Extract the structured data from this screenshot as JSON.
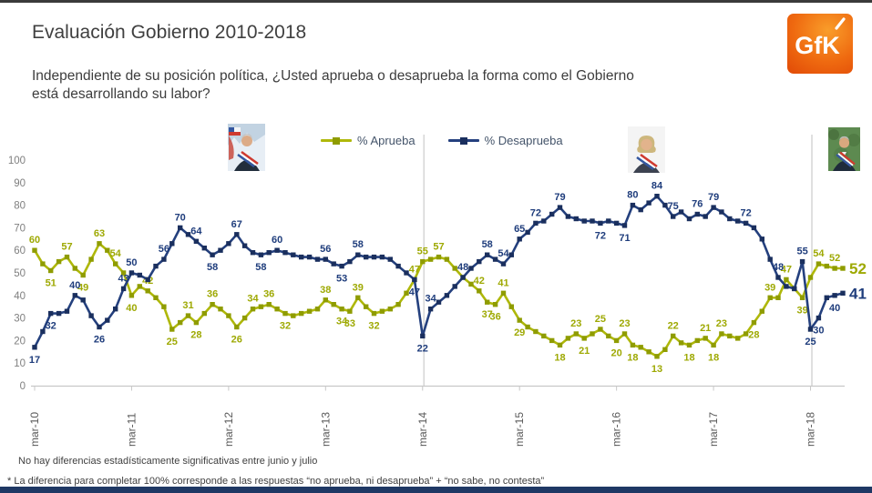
{
  "page": {
    "title": "Evaluación Gobierno 2010-2018",
    "subtitle_line1": "Independiente de su posición política, ¿Usted aprueba o desaprueba la forma como el Gobierno",
    "subtitle_line2": "está desarrollando su labor?"
  },
  "logo": {
    "text": "GfK"
  },
  "footnotes": [
    "No hay diferencias estadísticamente significativas entre junio y julio",
    "* La diferencia para completar 100% corresponde a las respuestas “no aprueba, ni desaprueba” + “no sabe, no contesta”"
  ],
  "chart_data": {
    "type": "line",
    "title": "Evaluación Gobierno 2010-2018",
    "x_unit": "month",
    "x_start": "mar-10",
    "x_end": "jul-18",
    "ylim": [
      0,
      100
    ],
    "grid": "off",
    "legend_position": "top-center",
    "y_ticks": [
      0,
      10,
      20,
      30,
      40,
      50,
      60,
      70,
      80,
      90,
      100
    ],
    "x_ticks": [
      {
        "label": "mar-10",
        "month": 0
      },
      {
        "label": "mar-11",
        "month": 12
      },
      {
        "label": "mar-12",
        "month": 24
      },
      {
        "label": "mar-13",
        "month": 36
      },
      {
        "label": "mar-14",
        "month": 48
      },
      {
        "label": "mar-15",
        "month": 60
      },
      {
        "label": "mar-16",
        "month": 72
      },
      {
        "label": "mar-17",
        "month": 84
      },
      {
        "label": "mar-18",
        "month": 96
      }
    ],
    "separator_months": [
      48,
      96
    ],
    "series": [
      {
        "key": "aprueba",
        "name": "% Aprueba",
        "color": "#afb80a",
        "marker_color": "#8f9c00",
        "label_color": "#9ea903",
        "end_label": "52",
        "values": [
          60,
          54,
          51,
          55,
          57,
          52,
          49,
          56,
          63,
          60,
          54,
          50,
          40,
          44,
          42,
          39,
          35,
          25,
          28,
          31,
          28,
          32,
          36,
          34,
          31,
          26,
          30,
          34,
          35,
          36,
          34,
          32,
          31,
          32,
          33,
          34,
          38,
          36,
          34,
          33,
          39,
          35,
          32,
          33,
          34,
          36,
          41,
          47,
          55,
          56,
          57,
          56,
          52,
          48,
          45,
          42,
          37,
          36,
          41,
          35,
          29,
          26,
          24,
          22,
          20,
          18,
          21,
          23,
          21,
          23,
          25,
          22,
          20,
          23,
          18,
          17,
          15,
          13,
          16,
          22,
          19,
          18,
          20,
          21,
          18,
          23,
          22,
          21,
          23,
          28,
          33,
          39,
          39,
          47,
          43,
          39,
          48,
          54,
          53,
          52,
          52
        ],
        "labeled_points": [
          [
            0,
            "a"
          ],
          [
            2,
            "b"
          ],
          [
            4,
            "a"
          ],
          [
            6,
            "b"
          ],
          [
            8,
            "a"
          ],
          [
            10,
            "a"
          ],
          [
            12,
            "b"
          ],
          [
            14,
            "a"
          ],
          [
            17,
            "b"
          ],
          [
            19,
            "a"
          ],
          [
            20,
            "b"
          ],
          [
            22,
            "a"
          ],
          [
            25,
            "b"
          ],
          [
            27,
            "a"
          ],
          [
            29,
            "a"
          ],
          [
            31,
            "b"
          ],
          [
            36,
            "a"
          ],
          [
            38,
            "b"
          ],
          [
            39,
            "b"
          ],
          [
            40,
            "a"
          ],
          [
            42,
            "b"
          ],
          [
            47,
            "a"
          ],
          [
            48,
            "a"
          ],
          [
            50,
            "a"
          ],
          [
            55,
            "a"
          ],
          [
            56,
            "b"
          ],
          [
            57,
            "b"
          ],
          [
            58,
            "a"
          ],
          [
            60,
            "b"
          ],
          [
            65,
            "b"
          ],
          [
            67,
            "a"
          ],
          [
            68,
            "b"
          ],
          [
            70,
            "a"
          ],
          [
            72,
            "b"
          ],
          [
            73,
            "a"
          ],
          [
            74,
            "b"
          ],
          [
            77,
            "b"
          ],
          [
            79,
            "a"
          ],
          [
            81,
            "b"
          ],
          [
            83,
            "a"
          ],
          [
            84,
            "b"
          ],
          [
            85,
            "a"
          ],
          [
            89,
            "b"
          ],
          [
            91,
            "a"
          ],
          [
            93,
            "a"
          ],
          [
            95,
            "b"
          ],
          [
            97,
            "a"
          ],
          [
            99,
            "a"
          ]
        ]
      },
      {
        "key": "desaprueba",
        "name": "% Desaprueba",
        "color": "#24407e",
        "marker_color": "#1a2f5e",
        "label_color": "#1f3d7c",
        "end_label": "41",
        "values": [
          17,
          24,
          32,
          32,
          33,
          40,
          38,
          31,
          26,
          29,
          34,
          43,
          50,
          49,
          47,
          53,
          56,
          63,
          70,
          67,
          64,
          61,
          58,
          60,
          63,
          67,
          62,
          59,
          58,
          59,
          60,
          59,
          58,
          57,
          57,
          56,
          56,
          54,
          53,
          55,
          58,
          57,
          57,
          57,
          56,
          53,
          50,
          47,
          22,
          34,
          37,
          40,
          44,
          48,
          52,
          55,
          58,
          56,
          54,
          58,
          65,
          68,
          72,
          73,
          76,
          79,
          75,
          74,
          73,
          73,
          72,
          73,
          72,
          71,
          80,
          78,
          81,
          84,
          80,
          75,
          77,
          74,
          76,
          75,
          79,
          77,
          74,
          73,
          72,
          70,
          65,
          56,
          48,
          44,
          43,
          55,
          25,
          30,
          39,
          40,
          41
        ],
        "labeled_points": [
          [
            0,
            "b"
          ],
          [
            2,
            "b"
          ],
          [
            5,
            "a"
          ],
          [
            8,
            "b"
          ],
          [
            11,
            "a"
          ],
          [
            12,
            "a"
          ],
          [
            16,
            "a"
          ],
          [
            18,
            "a"
          ],
          [
            20,
            "a"
          ],
          [
            22,
            "b"
          ],
          [
            25,
            "a"
          ],
          [
            28,
            "b"
          ],
          [
            30,
            "a"
          ],
          [
            36,
            "a"
          ],
          [
            38,
            "b"
          ],
          [
            40,
            "a"
          ],
          [
            47,
            "b"
          ],
          [
            48,
            "b"
          ],
          [
            49,
            "a"
          ],
          [
            53,
            "a"
          ],
          [
            56,
            "a"
          ],
          [
            58,
            "a"
          ],
          [
            60,
            "a"
          ],
          [
            62,
            "a"
          ],
          [
            65,
            "a"
          ],
          [
            70,
            "b"
          ],
          [
            73,
            "b"
          ],
          [
            74,
            "a"
          ],
          [
            77,
            "a"
          ],
          [
            79,
            "a"
          ],
          [
            82,
            "a"
          ],
          [
            84,
            "a"
          ],
          [
            88,
            "a"
          ],
          [
            92,
            "a"
          ],
          [
            95,
            "a"
          ],
          [
            96,
            "b"
          ],
          [
            97,
            "b"
          ],
          [
            99,
            "b"
          ]
        ]
      }
    ]
  }
}
